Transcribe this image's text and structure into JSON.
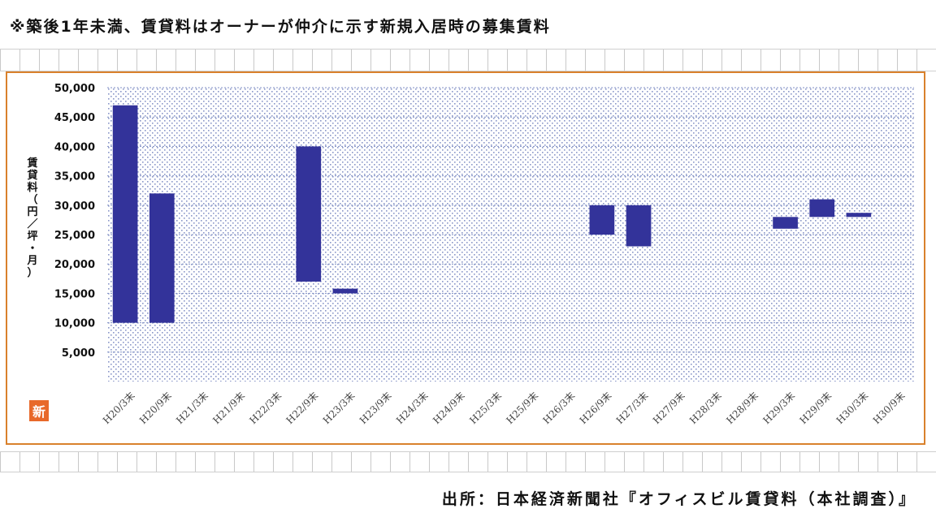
{
  "note": "※築後1年未満、賃貸料はオーナーが仲介に示す新規入居時の募集賃料",
  "source": "出所：日本経済新聞社『オフィスビル賃貸料（本社調査）』",
  "logo_text": "新",
  "colors": {
    "bar": "#33339a",
    "frame": "#d9812c",
    "plot_dots": "#8a96c8"
  },
  "chart_data": {
    "type": "bar",
    "subtype": "floating-range",
    "ylabel": "賃貸料（円／坪・月）",
    "ylim": [
      0,
      50000
    ],
    "y_ticks": [
      "5,000",
      "10,000",
      "15,000",
      "20,000",
      "25,000",
      "30,000",
      "35,000",
      "40,000",
      "45,000",
      "50,000"
    ],
    "y_tick_values": [
      5000,
      10000,
      15000,
      20000,
      25000,
      30000,
      35000,
      40000,
      45000,
      50000
    ],
    "grid": true,
    "categories": [
      "H20/3末",
      "H20/9末",
      "H21/3末",
      "H21/9末",
      "H22/3末",
      "H22/9末",
      "H23/3末",
      "H23/9末",
      "H24/3末",
      "H24/9末",
      "H25/3末",
      "H25/9末",
      "H26/3末",
      "H26/9末",
      "H27/3末",
      "H27/9末",
      "H28/3末",
      "H28/9末",
      "H29/3末",
      "H29/9末",
      "H30/3末",
      "H30/9末"
    ],
    "ranges": [
      [
        10000,
        47000
      ],
      [
        10000,
        32000
      ],
      null,
      null,
      null,
      [
        17000,
        40000
      ],
      [
        15000,
        15800
      ],
      null,
      null,
      null,
      null,
      null,
      null,
      [
        25000,
        30000
      ],
      [
        23000,
        30000
      ],
      null,
      null,
      null,
      [
        26000,
        28000
      ],
      [
        28000,
        31000
      ],
      [
        28000,
        28700
      ],
      null
    ]
  }
}
